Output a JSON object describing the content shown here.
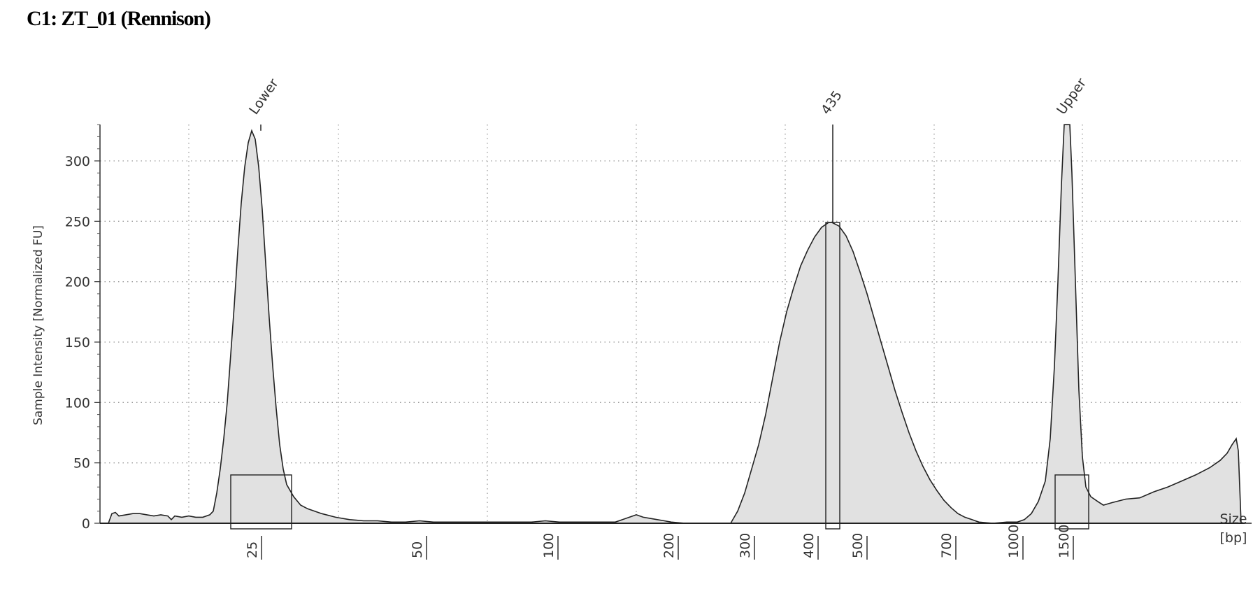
{
  "title": "C1: ZT_01 (Rennison)",
  "chart_data": {
    "type": "area",
    "title": "C1: ZT_01 (Rennison)",
    "ylabel": "Sample Intensity [Normalized FU]",
    "xlabel": [
      "Size",
      "[bp]"
    ],
    "ylim": [
      0,
      330
    ],
    "y_ticks": [
      0,
      50,
      100,
      150,
      200,
      250,
      300
    ],
    "x_ticks": [
      25,
      50,
      100,
      200,
      300,
      400,
      500,
      700,
      1000,
      1500
    ],
    "grid": "dotted",
    "peaks": [
      {
        "label": "Lower",
        "size_bp": 25,
        "height": 325
      },
      {
        "label": "435",
        "size_bp": 435,
        "height": 249
      },
      {
        "label": "Upper",
        "size_bp": 1500,
        "height": 330
      }
    ],
    "trace": [
      [
        143,
        0
      ],
      [
        155,
        0
      ],
      [
        160,
        8
      ],
      [
        165,
        9
      ],
      [
        170,
        6
      ],
      [
        180,
        7
      ],
      [
        190,
        8
      ],
      [
        200,
        8
      ],
      [
        210,
        7
      ],
      [
        220,
        6
      ],
      [
        230,
        7
      ],
      [
        240,
        6
      ],
      [
        245,
        3
      ],
      [
        250,
        6
      ],
      [
        260,
        5
      ],
      [
        270,
        6
      ],
      [
        280,
        5
      ],
      [
        290,
        5
      ],
      [
        300,
        7
      ],
      [
        305,
        10
      ],
      [
        310,
        25
      ],
      [
        315,
        45
      ],
      [
        320,
        70
      ],
      [
        325,
        100
      ],
      [
        330,
        140
      ],
      [
        335,
        180
      ],
      [
        340,
        225
      ],
      [
        345,
        265
      ],
      [
        350,
        295
      ],
      [
        355,
        315
      ],
      [
        360,
        325
      ],
      [
        365,
        318
      ],
      [
        370,
        295
      ],
      [
        375,
        260
      ],
      [
        380,
        215
      ],
      [
        385,
        170
      ],
      [
        390,
        130
      ],
      [
        395,
        95
      ],
      [
        400,
        65
      ],
      [
        405,
        45
      ],
      [
        410,
        32
      ],
      [
        420,
        22
      ],
      [
        430,
        15
      ],
      [
        440,
        12
      ],
      [
        460,
        8
      ],
      [
        480,
        5
      ],
      [
        500,
        3
      ],
      [
        520,
        2
      ],
      [
        540,
        2
      ],
      [
        560,
        1
      ],
      [
        580,
        1
      ],
      [
        600,
        2
      ],
      [
        620,
        1
      ],
      [
        640,
        1
      ],
      [
        660,
        1
      ],
      [
        680,
        1
      ],
      [
        700,
        1
      ],
      [
        720,
        1
      ],
      [
        740,
        1
      ],
      [
        760,
        1
      ],
      [
        780,
        2
      ],
      [
        800,
        1
      ],
      [
        820,
        1
      ],
      [
        840,
        1
      ],
      [
        860,
        1
      ],
      [
        880,
        1
      ],
      [
        900,
        5
      ],
      [
        910,
        7
      ],
      [
        920,
        5
      ],
      [
        930,
        4
      ],
      [
        940,
        3
      ],
      [
        950,
        2
      ],
      [
        960,
        1
      ],
      [
        980,
        0
      ],
      [
        1000,
        0
      ],
      [
        1020,
        0
      ],
      [
        1045,
        0
      ],
      [
        1055,
        10
      ],
      [
        1065,
        25
      ],
      [
        1075,
        45
      ],
      [
        1085,
        65
      ],
      [
        1095,
        90
      ],
      [
        1105,
        120
      ],
      [
        1115,
        150
      ],
      [
        1125,
        175
      ],
      [
        1135,
        195
      ],
      [
        1145,
        213
      ],
      [
        1155,
        226
      ],
      [
        1165,
        237
      ],
      [
        1175,
        245
      ],
      [
        1185,
        249
      ],
      [
        1190,
        249
      ],
      [
        1200,
        246
      ],
      [
        1210,
        238
      ],
      [
        1220,
        225
      ],
      [
        1230,
        208
      ],
      [
        1240,
        190
      ],
      [
        1250,
        170
      ],
      [
        1260,
        150
      ],
      [
        1270,
        130
      ],
      [
        1280,
        110
      ],
      [
        1290,
        92
      ],
      [
        1300,
        75
      ],
      [
        1310,
        60
      ],
      [
        1320,
        47
      ],
      [
        1330,
        36
      ],
      [
        1340,
        27
      ],
      [
        1350,
        19
      ],
      [
        1360,
        13
      ],
      [
        1370,
        8
      ],
      [
        1380,
        5
      ],
      [
        1390,
        3
      ],
      [
        1400,
        1
      ],
      [
        1420,
        0
      ],
      [
        1440,
        1
      ],
      [
        1455,
        1
      ],
      [
        1465,
        3
      ],
      [
        1475,
        8
      ],
      [
        1485,
        18
      ],
      [
        1495,
        35
      ],
      [
        1502,
        70
      ],
      [
        1508,
        130
      ],
      [
        1513,
        200
      ],
      [
        1518,
        280
      ],
      [
        1522,
        330
      ],
      [
        1530,
        330
      ],
      [
        1533,
        290
      ],
      [
        1538,
        200
      ],
      [
        1543,
        110
      ],
      [
        1548,
        55
      ],
      [
        1553,
        30
      ],
      [
        1560,
        22
      ],
      [
        1570,
        18
      ],
      [
        1578,
        15
      ],
      [
        1590,
        17
      ],
      [
        1610,
        20
      ],
      [
        1630,
        21
      ],
      [
        1650,
        26
      ],
      [
        1670,
        30
      ],
      [
        1690,
        35
      ],
      [
        1710,
        40
      ],
      [
        1730,
        46
      ],
      [
        1745,
        52
      ],
      [
        1755,
        58
      ],
      [
        1762,
        65
      ],
      [
        1768,
        70
      ],
      [
        1771,
        60
      ],
      [
        1773,
        30
      ],
      [
        1775,
        0
      ],
      [
        1790,
        0
      ]
    ]
  }
}
